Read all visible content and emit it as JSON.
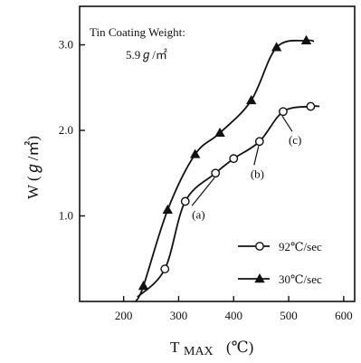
{
  "chart_data": {
    "type": "line",
    "x": [],
    "xlim": [
      120,
      620
    ],
    "ylim": [
      0.0,
      3.45
    ],
    "xticks": [
      200,
      300,
      400,
      500,
      600
    ],
    "yticks": [
      1.0,
      2.0,
      3.0
    ],
    "xtick_labels": [
      "200",
      "300",
      "400",
      "500",
      "600"
    ],
    "ytick_labels": [
      "1.0",
      "2.0",
      "3.0"
    ],
    "xlabel_main": "T",
    "xlabel_sub": "MAX",
    "xlabel_unit": "(℃)",
    "ylabel": "W (ℊ/㎡)",
    "grid": false,
    "legend_placement": "bottom-right",
    "annotation_box": {
      "line1": "Tin Coating Weight:",
      "line2": "5.9ℊ/㎡"
    },
    "series": [
      {
        "name": "92℃/sec",
        "marker": "open-circle",
        "color": "#111111",
        "points": [
          {
            "x": 275,
            "y": 0.38
          },
          {
            "x": 312,
            "y": 1.17
          },
          {
            "x": 367,
            "y": 1.5
          },
          {
            "x": 400,
            "y": 1.67
          },
          {
            "x": 447,
            "y": 1.87
          },
          {
            "x": 490,
            "y": 2.22
          },
          {
            "x": 540,
            "y": 2.28
          }
        ],
        "curve_start": {
          "x": 225,
          "y": 0.05
        },
        "curve_end": {
          "x": 556,
          "y": 2.28
        }
      },
      {
        "name": "30℃/sec",
        "marker": "filled-triangle",
        "color": "#111111",
        "points": [
          {
            "x": 236,
            "y": 0.18
          },
          {
            "x": 280,
            "y": 1.07
          },
          {
            "x": 330,
            "y": 1.72
          },
          {
            "x": 375,
            "y": 1.97
          },
          {
            "x": 432,
            "y": 2.35
          },
          {
            "x": 478,
            "y": 2.97
          },
          {
            "x": 532,
            "y": 3.05
          }
        ],
        "curve_start": {
          "x": 222,
          "y": 0.0
        },
        "curve_end": {
          "x": 546,
          "y": 3.04
        }
      }
    ],
    "callouts": [
      {
        "label": "(a)",
        "target": {
          "x": 367,
          "y": 1.5
        }
      },
      {
        "label": "(b)",
        "target": {
          "x": 447,
          "y": 1.87
        }
      },
      {
        "label": "(c)",
        "target": {
          "x": 490,
          "y": 2.22
        }
      }
    ]
  }
}
